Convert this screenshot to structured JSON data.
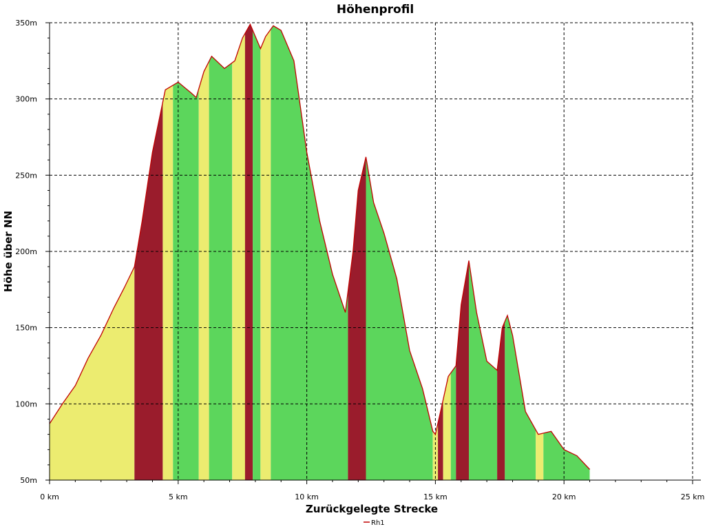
{
  "chart_data": {
    "type": "area",
    "title": "Höhenprofil",
    "xlabel": "Zurückgelegte Strecke",
    "ylabel": "Höhe über NN",
    "xlim": [
      0,
      25
    ],
    "ylim": [
      50,
      350
    ],
    "x_ticks": [
      0,
      5,
      10,
      15,
      20,
      25
    ],
    "x_tick_labels": [
      "0 km",
      "5 km",
      "10 km",
      "15 km",
      "20 km",
      "25 km"
    ],
    "y_ticks": [
      50,
      100,
      150,
      200,
      250,
      300,
      350
    ],
    "y_tick_labels": [
      "50m",
      "100m",
      "150m",
      "200m",
      "250m",
      "300m",
      "350m"
    ],
    "grid": true,
    "legend_position": "bottom",
    "series": [
      {
        "name": "Rh1",
        "color": "#c00000",
        "x": [
          0,
          0.5,
          1.0,
          1.5,
          2.0,
          2.5,
          2.9,
          3.3,
          3.6,
          4.0,
          4.5,
          5.0,
          5.5,
          5.7,
          6.0,
          6.3,
          6.8,
          7.2,
          7.5,
          7.8,
          8.2,
          8.4,
          8.7,
          9.0,
          9.5,
          10.0,
          10.5,
          11.0,
          11.5,
          11.8,
          12.0,
          12.3,
          12.6,
          13.0,
          13.5,
          14.0,
          14.5,
          14.9,
          15.0,
          15.2,
          15.5,
          15.8,
          16.0,
          16.3,
          16.6,
          17.0,
          17.4,
          17.6,
          17.8,
          18.0,
          18.5,
          19.0,
          19.5,
          20.0,
          20.5,
          21.0
        ],
        "y": [
          87,
          100,
          112,
          130,
          145,
          163,
          176,
          190,
          220,
          265,
          306,
          311,
          304,
          301,
          318,
          328,
          320,
          325,
          340,
          349,
          333,
          341,
          348,
          345,
          325,
          265,
          220,
          185,
          160,
          200,
          240,
          262,
          232,
          212,
          182,
          135,
          110,
          82,
          80,
          95,
          118,
          125,
          165,
          194,
          160,
          128,
          122,
          150,
          158,
          145,
          95,
          80,
          82,
          70,
          66,
          57
        ]
      }
    ],
    "slope_bands": [
      {
        "x0": 0,
        "x1": 3.3,
        "grade": "moderate"
      },
      {
        "x0": 3.3,
        "x1": 4.4,
        "grade": "steep"
      },
      {
        "x0": 4.4,
        "x1": 4.8,
        "grade": "moderate"
      },
      {
        "x0": 4.8,
        "x1": 5.8,
        "grade": "flat"
      },
      {
        "x0": 5.8,
        "x1": 6.2,
        "grade": "moderate"
      },
      {
        "x0": 6.2,
        "x1": 7.1,
        "grade": "flat"
      },
      {
        "x0": 7.1,
        "x1": 7.6,
        "grade": "moderate"
      },
      {
        "x0": 7.6,
        "x1": 7.9,
        "grade": "steep"
      },
      {
        "x0": 7.9,
        "x1": 8.2,
        "grade": "flat"
      },
      {
        "x0": 8.2,
        "x1": 8.6,
        "grade": "moderate"
      },
      {
        "x0": 8.6,
        "x1": 11.6,
        "grade": "flat"
      },
      {
        "x0": 11.6,
        "x1": 12.3,
        "grade": "steep"
      },
      {
        "x0": 12.3,
        "x1": 14.9,
        "grade": "flat"
      },
      {
        "x0": 14.9,
        "x1": 15.1,
        "grade": "moderate"
      },
      {
        "x0": 15.1,
        "x1": 15.3,
        "grade": "steep"
      },
      {
        "x0": 15.3,
        "x1": 15.6,
        "grade": "moderate"
      },
      {
        "x0": 15.6,
        "x1": 15.8,
        "grade": "flat"
      },
      {
        "x0": 15.8,
        "x1": 16.3,
        "grade": "steep"
      },
      {
        "x0": 16.3,
        "x1": 17.4,
        "grade": "flat"
      },
      {
        "x0": 17.4,
        "x1": 17.7,
        "grade": "steep"
      },
      {
        "x0": 17.7,
        "x1": 18.9,
        "grade": "flat"
      },
      {
        "x0": 18.9,
        "x1": 19.2,
        "grade": "moderate"
      },
      {
        "x0": 19.2,
        "x1": 21.0,
        "grade": "flat"
      }
    ],
    "grade_colors": {
      "flat": "#5cd65c",
      "moderate": "#ecec70",
      "steep": "#9a1c2c"
    }
  }
}
